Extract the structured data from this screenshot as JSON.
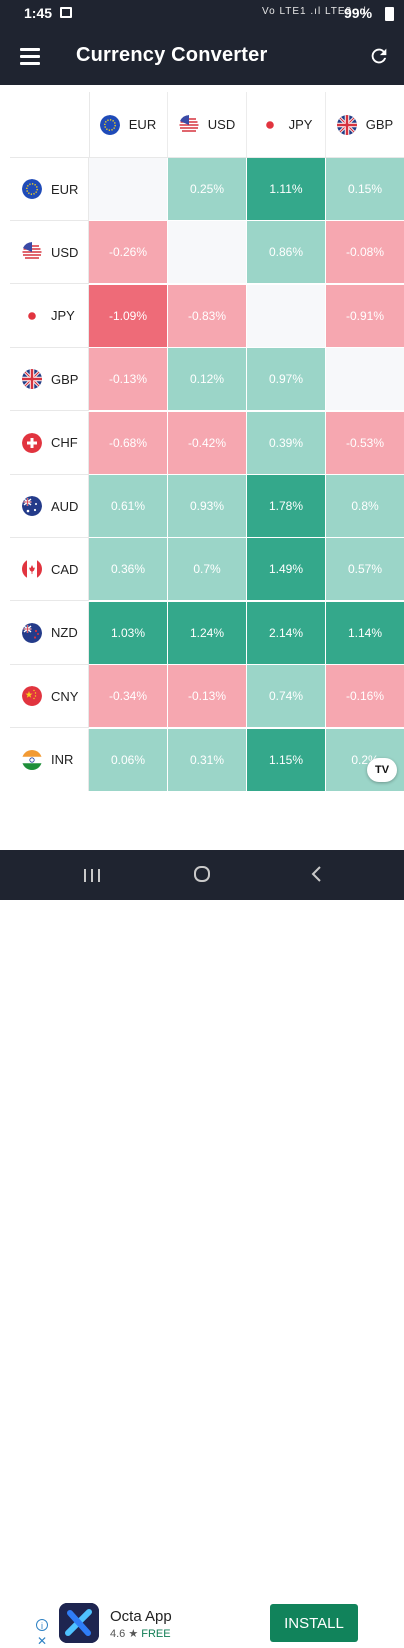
{
  "status_bar": {
    "time": "1:45",
    "signal": "Vo LTE1 .ıl LTE2 .ıl",
    "battery": "99%"
  },
  "app_bar": {
    "title": "Currency Converter"
  },
  "colors": {
    "dark_bar": "#1f2430",
    "pos_light": "#9bd5c8",
    "pos_mid": "#7ccab8",
    "pos_strong": "#34a88b",
    "neg_light": "#f6a7b0",
    "neg_mid": "#f49aa4",
    "neg_strong": "#ee6b78",
    "empty": "#f7f8fa"
  },
  "grid": {
    "columns": [
      {
        "code": "EUR",
        "flag": "eu-flag-icon"
      },
      {
        "code": "USD",
        "flag": "us-flag-icon"
      },
      {
        "code": "JPY",
        "flag": "jp-flag-icon"
      },
      {
        "code": "GBP",
        "flag": "gb-flag-icon"
      }
    ],
    "rows": [
      {
        "code": "EUR",
        "flag": "eu-flag-icon",
        "cells": [
          "",
          "0.25%",
          "1.11%",
          "0.15%"
        ]
      },
      {
        "code": "USD",
        "flag": "us-flag-icon",
        "cells": [
          "-0.26%",
          "",
          "0.86%",
          "-0.08%"
        ]
      },
      {
        "code": "JPY",
        "flag": "jp-flag-icon",
        "cells": [
          "-1.09%",
          "-0.83%",
          "",
          "-0.91%"
        ]
      },
      {
        "code": "GBP",
        "flag": "gb-flag-icon",
        "cells": [
          "-0.13%",
          "0.12%",
          "0.97%",
          ""
        ]
      },
      {
        "code": "CHF",
        "flag": "ch-flag-icon",
        "cells": [
          "-0.68%",
          "-0.42%",
          "0.39%",
          "-0.53%"
        ]
      },
      {
        "code": "AUD",
        "flag": "au-flag-icon",
        "cells": [
          "0.61%",
          "0.93%",
          "1.78%",
          "0.8%"
        ]
      },
      {
        "code": "CAD",
        "flag": "ca-flag-icon",
        "cells": [
          "0.36%",
          "0.7%",
          "1.49%",
          "0.57%"
        ]
      },
      {
        "code": "NZD",
        "flag": "nz-flag-icon",
        "cells": [
          "1.03%",
          "1.24%",
          "2.14%",
          "1.14%"
        ]
      },
      {
        "code": "CNY",
        "flag": "cn-flag-icon",
        "cells": [
          "-0.34%",
          "-0.13%",
          "0.74%",
          "-0.16%"
        ]
      },
      {
        "code": "INR",
        "flag": "in-flag-icon",
        "cells": [
          "0.06%",
          "0.31%",
          "1.15%",
          "0.2%"
        ]
      }
    ]
  },
  "watermark": {
    "label": "TV"
  },
  "ad": {
    "title": "Octa App",
    "rating": "4.6 ★",
    "price": "FREE",
    "install_label": "INSTALL",
    "info_icon": "info-icon",
    "close_icon": "close-icon"
  },
  "nav_bar": {
    "recents": "recents-icon",
    "home": "home-icon",
    "back": "back-icon"
  }
}
